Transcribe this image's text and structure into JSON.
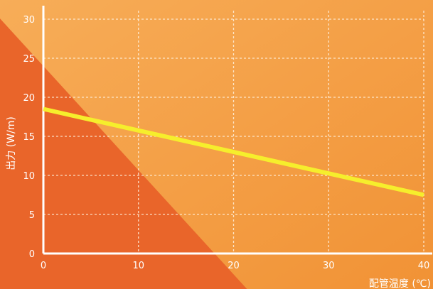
{
  "colors": {
    "background_light": "#f7ad58",
    "background_mid": "#f19235",
    "region_shade": "#e9652a",
    "series_line": "#f6ee2c",
    "grid": "#fff2e0",
    "axis": "#ffffff"
  },
  "chart_data": {
    "type": "line",
    "title": "",
    "xlabel": "配管温度 (℃)",
    "ylabel": "出力 (W/m)",
    "xlim": [
      0,
      40
    ],
    "ylim": [
      0,
      30
    ],
    "x_ticks": [
      0,
      10,
      20,
      30,
      40
    ],
    "y_ticks": [
      0,
      5,
      10,
      15,
      20,
      25,
      30
    ],
    "x_tick_labels": [
      "0",
      "10",
      "20",
      "30",
      "40"
    ],
    "y_tick_labels": [
      "0",
      "5",
      "10",
      "15",
      "20",
      "25",
      "30"
    ],
    "grid": true,
    "legend": "none",
    "series": [
      {
        "x": [
          0,
          40
        ],
        "y": [
          18.5,
          7.5
        ]
      }
    ],
    "shaded_region": {
      "x": [
        0,
        18
      ],
      "y": [
        24,
        0
      ]
    }
  }
}
